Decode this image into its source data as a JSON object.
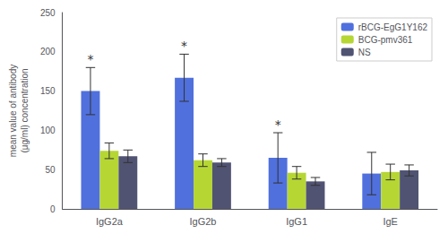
{
  "chart_data": {
    "type": "bar",
    "categories": [
      "IgG2a",
      "IgG2b",
      "IgG1",
      "IgE"
    ],
    "series": [
      {
        "name": "rBCG-EgG1Y162",
        "values": [
          150,
          167,
          65,
          45
        ],
        "errors": [
          30,
          30,
          32,
          27
        ]
      },
      {
        "name": "BCG-pmv361",
        "values": [
          74,
          62,
          46,
          47
        ],
        "errors": [
          10,
          8,
          8,
          10
        ]
      },
      {
        "name": "NS",
        "values": [
          67,
          59,
          35,
          49
        ],
        "errors": [
          8,
          5,
          5,
          7
        ]
      }
    ],
    "ylabel": "mean value of antibody\n(μg/ml) concentration",
    "ylim": [
      0,
      250
    ],
    "yticks": [
      0,
      50,
      100,
      150,
      200,
      250
    ],
    "grid": false,
    "legend": "upper right",
    "annotations": [
      {
        "text": "*",
        "category": "IgG2a",
        "series": "rBCG-EgG1Y162"
      },
      {
        "text": "*",
        "category": "IgG2b",
        "series": "rBCG-EgG1Y162"
      },
      {
        "text": "*",
        "category": "IgG1",
        "series": "rBCG-EgG1Y162"
      }
    ]
  }
}
